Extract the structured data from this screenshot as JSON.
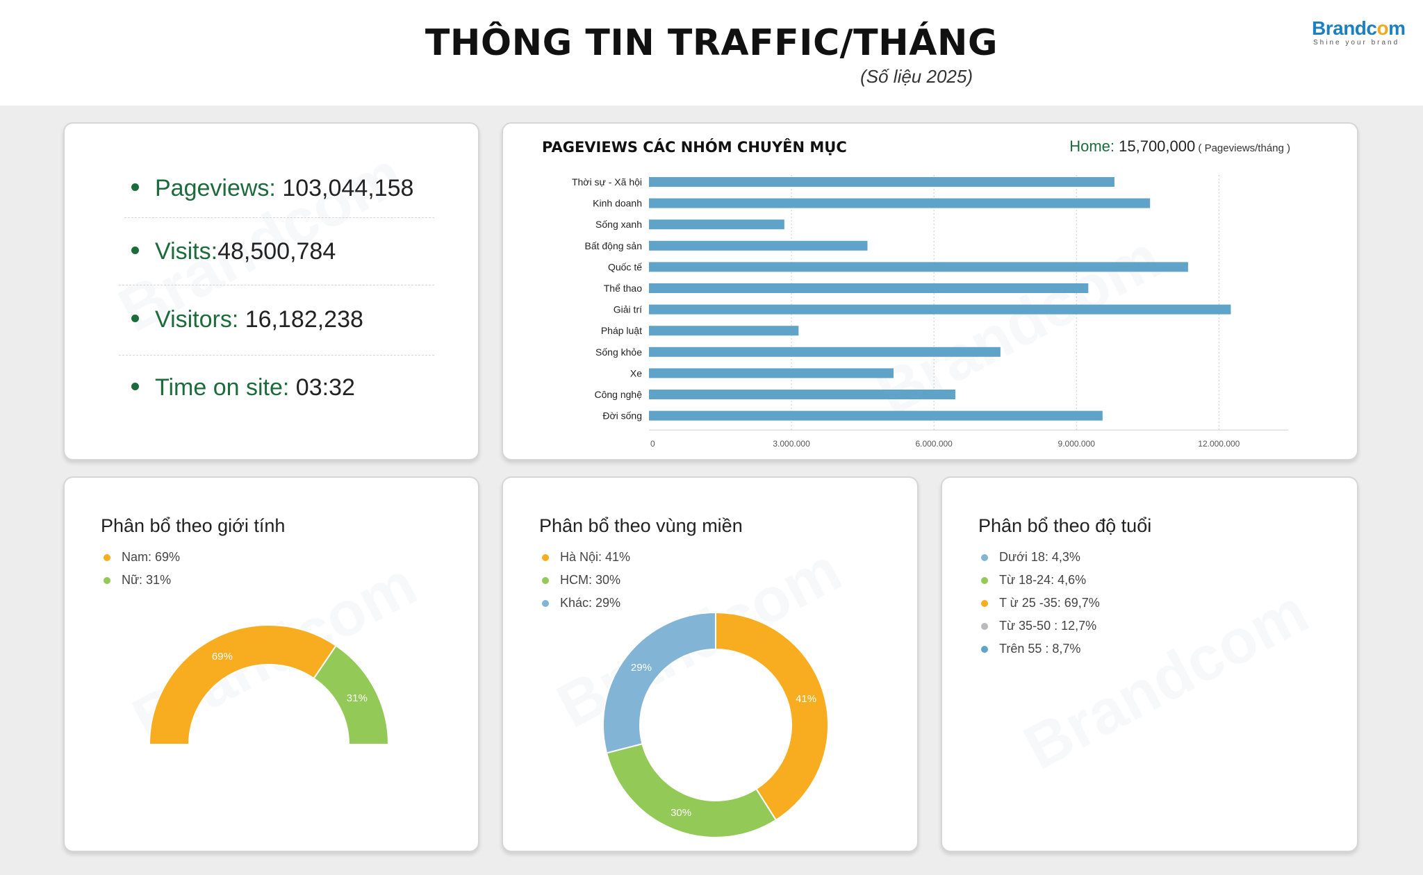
{
  "header": {
    "title": "THÔNG TIN TRAFFIC/THÁNG",
    "subtitle": "(Số liệu 2025)",
    "logo_text_a": "Brandc",
    "logo_text_o": "o",
    "logo_text_b": "m",
    "logo_tagline": "Shine your brand"
  },
  "kpis": [
    {
      "label": "Pageviews:",
      "value": " 103,044,158"
    },
    {
      "label": "Visits:",
      "value": "48,500,784"
    },
    {
      "label": "Visitors:",
      "value": " 16,182,238"
    },
    {
      "label": "Time on site:",
      "value": "  03:32"
    }
  ],
  "bar_panel": {
    "heading": "PAGEVIEWS CÁC NHÓM CHUYÊN MỤC",
    "home_label": "Home:",
    "home_value": " 15,700,000",
    "home_unit": " ( Pageviews/tháng )"
  },
  "colors": {
    "bar": "#5fa3c9",
    "orange": "#f7ad1f",
    "green": "#93c956",
    "blue": "#82b5d5",
    "gray": "#b9b9bf",
    "kpi_green": "#1c6b3a"
  },
  "chart_data": [
    {
      "type": "bar",
      "orientation": "horizontal",
      "categories": [
        "Thời sự - Xã hội",
        "Kinh doanh",
        "Sống xanh",
        "Bất động sản",
        "Quốc tế",
        "Thể thao",
        "Giải trí",
        "Pháp luật",
        "Sống khỏe",
        "Xe",
        "Công nghệ",
        "Đời sống"
      ],
      "values": [
        9800000,
        10550000,
        2850000,
        4600000,
        11350000,
        9250000,
        12250000,
        3150000,
        7400000,
        5150000,
        6450000,
        9550000
      ],
      "xlim": [
        0,
        12800000
      ],
      "xticks": [
        0,
        3000000,
        6000000,
        9000000,
        12000000
      ],
      "xtick_labels": [
        "0",
        "3.000.000",
        "6.000.000",
        "9.000.000",
        "12.000.000"
      ],
      "grid": true,
      "bar_color": "#5fa3c9"
    },
    {
      "type": "pie",
      "variant": "half-donut",
      "title": "Phân bổ theo giới tính",
      "labels": [
        "Nam",
        "Nữ"
      ],
      "values": [
        69,
        31
      ],
      "slice_labels": [
        "69%",
        "31%"
      ],
      "legend": [
        "Nam: 69%",
        "Nữ: 31%"
      ],
      "colors": [
        "#f7ad1f",
        "#93c956"
      ]
    },
    {
      "type": "pie",
      "variant": "donut",
      "title": "Phân bổ theo vùng miền",
      "labels": [
        "Hà Nội",
        "HCM",
        "Khác"
      ],
      "values": [
        41,
        30,
        29
      ],
      "slice_labels": [
        "41%",
        "30%",
        "29%"
      ],
      "legend": [
        "Hà Nội: 41%",
        "HCM: 30%",
        "Khác: 29%"
      ],
      "colors": [
        "#f7ad1f",
        "#93c956",
        "#82b5d5"
      ]
    },
    {
      "type": "pie",
      "variant": "legend-only",
      "title": "Phân bổ theo độ tuổi",
      "labels": [
        "Dưới 18",
        "Từ 18-24",
        "Từ 25-35",
        "Từ 35-50",
        "Trên 55"
      ],
      "values": [
        4.3,
        4.6,
        69.7,
        12.7,
        8.7
      ],
      "legend": [
        "Dưới 18: 4,3%",
        "Từ 18-24: 4,6%",
        "T ừ 25 -35: 69,7%",
        "Từ 35-50 : 12,7%",
        "Trên 55 : 8,7%"
      ],
      "colors": [
        "#82b5d5",
        "#93c956",
        "#f7ad1f",
        "#b9b9bf",
        "#5fa3c9"
      ]
    }
  ]
}
